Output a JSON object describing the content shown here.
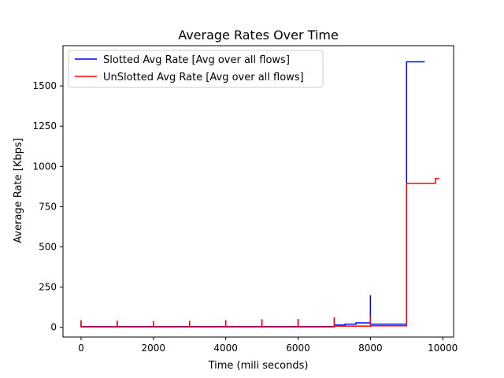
{
  "chart_data": {
    "type": "line",
    "title": "Average Rates Over Time",
    "xlabel": "Time (mili seconds)",
    "ylabel": "Average Rate [Kbps]",
    "xlim": [
      -500,
      10300
    ],
    "ylim": [
      -60,
      1750
    ],
    "x_ticks": [
      0,
      2000,
      4000,
      6000,
      8000,
      10000
    ],
    "y_ticks": [
      0,
      250,
      500,
      750,
      1000,
      1250,
      1500
    ],
    "grid": false,
    "legend_position": "top-left",
    "series": [
      {
        "name": "Slotted Avg Rate [Avg over all flows]",
        "color": "#0000ff",
        "x": [
          0,
          0,
          0,
          1000,
          1000,
          1000,
          2000,
          2000,
          2000,
          3000,
          3000,
          3000,
          4000,
          4000,
          4000,
          5000,
          5000,
          5000,
          6000,
          6000,
          6000,
          7000,
          7000,
          7000,
          7300,
          7300,
          7600,
          7600,
          8000,
          8000,
          8000,
          9000,
          9000,
          9000,
          9500
        ],
        "y": [
          5,
          40,
          5,
          5,
          35,
          5,
          5,
          35,
          5,
          5,
          38,
          5,
          5,
          45,
          5,
          5,
          50,
          5,
          5,
          50,
          5,
          5,
          55,
          15,
          15,
          20,
          20,
          28,
          28,
          200,
          20,
          20,
          650,
          1650,
          1650
        ]
      },
      {
        "name": "UnSlotted Avg Rate [Avg over all flows]",
        "color": "#ff0000",
        "x": [
          0,
          0,
          0,
          1000,
          1000,
          1000,
          2000,
          2000,
          2000,
          3000,
          3000,
          3000,
          4000,
          4000,
          4000,
          5000,
          5000,
          5000,
          6000,
          6000,
          6000,
          7000,
          7000,
          7000,
          8000,
          8000,
          8000,
          9000,
          9000,
          9000,
          9800,
          9800,
          9900
        ],
        "y": [
          3,
          45,
          3,
          3,
          42,
          3,
          3,
          40,
          3,
          3,
          40,
          3,
          3,
          42,
          3,
          3,
          48,
          3,
          3,
          52,
          3,
          3,
          62,
          8,
          8,
          70,
          10,
          10,
          380,
          895,
          895,
          925,
          925
        ]
      }
    ]
  }
}
